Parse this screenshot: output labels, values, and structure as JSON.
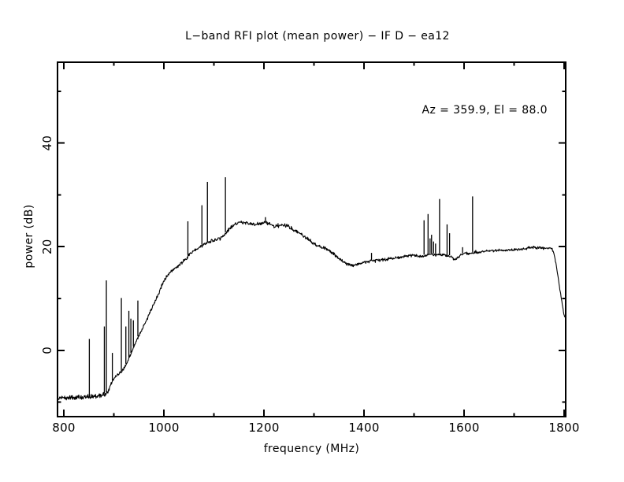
{
  "window": {
    "background": "#ffffff",
    "foreground": "#000000"
  },
  "chart_data": {
    "type": "line",
    "title": "L−band RFI plot (mean power) − IF D − ea12",
    "annotation": "Az = 359.9, El = 88.0",
    "xlabel": "frequency (MHz)",
    "ylabel": "power (dB)",
    "xlim": [
      787.4,
      1803.1
    ],
    "ylim": [
      -12.8,
      55.6
    ],
    "x_major_ticks": [
      800,
      1000,
      1200,
      1400,
      1600,
      1800
    ],
    "x_minor_ticks": [
      900,
      1100,
      1300,
      1500,
      1700
    ],
    "y_major_ticks": [
      0,
      20,
      40
    ],
    "y_minor_ticks": [
      -10,
      10,
      30,
      50
    ],
    "grid": false,
    "legend": "none",
    "line_color": "#000000",
    "series_name": "mean power spectrum",
    "baseline": [
      [
        787,
        -9.3
      ],
      [
        796,
        -9.1
      ],
      [
        806,
        -9.2
      ],
      [
        816,
        -9.0
      ],
      [
        826,
        -9.1
      ],
      [
        836,
        -9.0
      ],
      [
        846,
        -8.9
      ],
      [
        856,
        -8.9
      ],
      [
        866,
        -8.8
      ],
      [
        876,
        -8.7
      ],
      [
        882,
        -8.5
      ],
      [
        888,
        -8.0
      ],
      [
        893,
        -6.8
      ],
      [
        898,
        -5.8
      ],
      [
        904,
        -5.0
      ],
      [
        910,
        -4.6
      ],
      [
        916,
        -4.1
      ],
      [
        922,
        -3.2
      ],
      [
        928,
        -2.0
      ],
      [
        934,
        -0.7
      ],
      [
        940,
        0.8
      ],
      [
        947,
        2.3
      ],
      [
        954,
        3.6
      ],
      [
        961,
        5.0
      ],
      [
        968,
        6.4
      ],
      [
        975,
        7.9
      ],
      [
        981,
        9.2
      ],
      [
        987,
        10.4
      ],
      [
        993,
        11.9
      ],
      [
        999,
        13.1
      ],
      [
        1005,
        14.1
      ],
      [
        1012,
        14.9
      ],
      [
        1020,
        15.6
      ],
      [
        1030,
        16.4
      ],
      [
        1040,
        17.3
      ],
      [
        1050,
        18.4
      ],
      [
        1060,
        19.0
      ],
      [
        1070,
        19.8
      ],
      [
        1080,
        20.4
      ],
      [
        1090,
        20.9
      ],
      [
        1100,
        21.3
      ],
      [
        1110,
        21.6
      ],
      [
        1118,
        22.1
      ],
      [
        1126,
        22.9
      ],
      [
        1134,
        23.7
      ],
      [
        1142,
        24.3
      ],
      [
        1150,
        24.6
      ],
      [
        1160,
        24.7
      ],
      [
        1170,
        24.5
      ],
      [
        1180,
        24.3
      ],
      [
        1190,
        24.4
      ],
      [
        1198,
        24.6
      ],
      [
        1203,
        24.8
      ],
      [
        1208,
        24.5
      ],
      [
        1214,
        24.2
      ],
      [
        1222,
        24.0
      ],
      [
        1230,
        24.1
      ],
      [
        1240,
        24.2
      ],
      [
        1250,
        23.9
      ],
      [
        1258,
        23.4
      ],
      [
        1266,
        22.9
      ],
      [
        1274,
        22.4
      ],
      [
        1282,
        21.8
      ],
      [
        1290,
        21.3
      ],
      [
        1298,
        20.7
      ],
      [
        1306,
        20.3
      ],
      [
        1314,
        19.9
      ],
      [
        1322,
        19.7
      ],
      [
        1330,
        19.3
      ],
      [
        1338,
        18.6
      ],
      [
        1346,
        18.1
      ],
      [
        1354,
        17.4
      ],
      [
        1362,
        16.9
      ],
      [
        1370,
        16.5
      ],
      [
        1378,
        16.4
      ],
      [
        1386,
        16.6
      ],
      [
        1394,
        16.8
      ],
      [
        1402,
        17.0
      ],
      [
        1410,
        17.2
      ],
      [
        1418,
        17.4
      ],
      [
        1426,
        17.4
      ],
      [
        1434,
        17.4
      ],
      [
        1442,
        17.5
      ],
      [
        1450,
        17.7
      ],
      [
        1460,
        17.8
      ],
      [
        1470,
        17.9
      ],
      [
        1480,
        18.1
      ],
      [
        1490,
        18.2
      ],
      [
        1500,
        18.3
      ],
      [
        1510,
        18.2
      ],
      [
        1518,
        18.2
      ],
      [
        1526,
        18.4
      ],
      [
        1534,
        18.6
      ],
      [
        1542,
        18.4
      ],
      [
        1550,
        18.5
      ],
      [
        1558,
        18.4
      ],
      [
        1564,
        18.3
      ],
      [
        1570,
        18.2
      ],
      [
        1576,
        17.9
      ],
      [
        1582,
        17.5
      ],
      [
        1588,
        17.9
      ],
      [
        1594,
        18.4
      ],
      [
        1600,
        18.8
      ],
      [
        1606,
        18.7
      ],
      [
        1612,
        18.7
      ],
      [
        1618,
        18.8
      ],
      [
        1626,
        18.9
      ],
      [
        1634,
        19.0
      ],
      [
        1642,
        19.1
      ],
      [
        1650,
        19.2
      ],
      [
        1660,
        19.2
      ],
      [
        1670,
        19.3
      ],
      [
        1680,
        19.3
      ],
      [
        1690,
        19.4
      ],
      [
        1700,
        19.4
      ],
      [
        1710,
        19.5
      ],
      [
        1720,
        19.6
      ],
      [
        1730,
        19.8
      ],
      [
        1740,
        19.9
      ],
      [
        1750,
        19.8
      ],
      [
        1760,
        19.7
      ],
      [
        1770,
        19.8
      ],
      [
        1776,
        19.6
      ],
      [
        1780,
        18.6
      ],
      [
        1784,
        16.5
      ],
      [
        1788,
        14.0
      ],
      [
        1792,
        11.5
      ],
      [
        1796,
        9.0
      ],
      [
        1799,
        7.2
      ],
      [
        1801,
        6.4
      ],
      [
        1802,
        6.6
      ]
    ],
    "spikes": [
      [
        851,
        2.2
      ],
      [
        881,
        4.6
      ],
      [
        885,
        13.5
      ],
      [
        897,
        -0.5
      ],
      [
        915,
        10.1
      ],
      [
        924,
        4.6
      ],
      [
        930,
        7.6
      ],
      [
        934,
        6.1
      ],
      [
        939,
        5.8
      ],
      [
        948,
        9.6
      ],
      [
        1048,
        24.9
      ],
      [
        1076,
        28.0
      ],
      [
        1087,
        32.5
      ],
      [
        1123,
        33.4
      ],
      [
        1203,
        25.7
      ],
      [
        1415,
        18.8
      ],
      [
        1520,
        25.1
      ],
      [
        1528,
        26.3
      ],
      [
        1532,
        21.6
      ],
      [
        1535,
        22.3
      ],
      [
        1539,
        21.0
      ],
      [
        1543,
        20.6
      ],
      [
        1551,
        29.2
      ],
      [
        1566,
        24.3
      ],
      [
        1571,
        22.6
      ],
      [
        1597,
        19.9
      ],
      [
        1617,
        29.7
      ]
    ],
    "noise_regions": [
      [
        787,
        892,
        0.55
      ],
      [
        892,
        1000,
        0.35
      ],
      [
        1000,
        1345,
        0.4
      ],
      [
        1345,
        1520,
        0.32
      ],
      [
        1520,
        1778,
        0.3
      ],
      [
        1778,
        1803,
        0.2
      ]
    ]
  }
}
